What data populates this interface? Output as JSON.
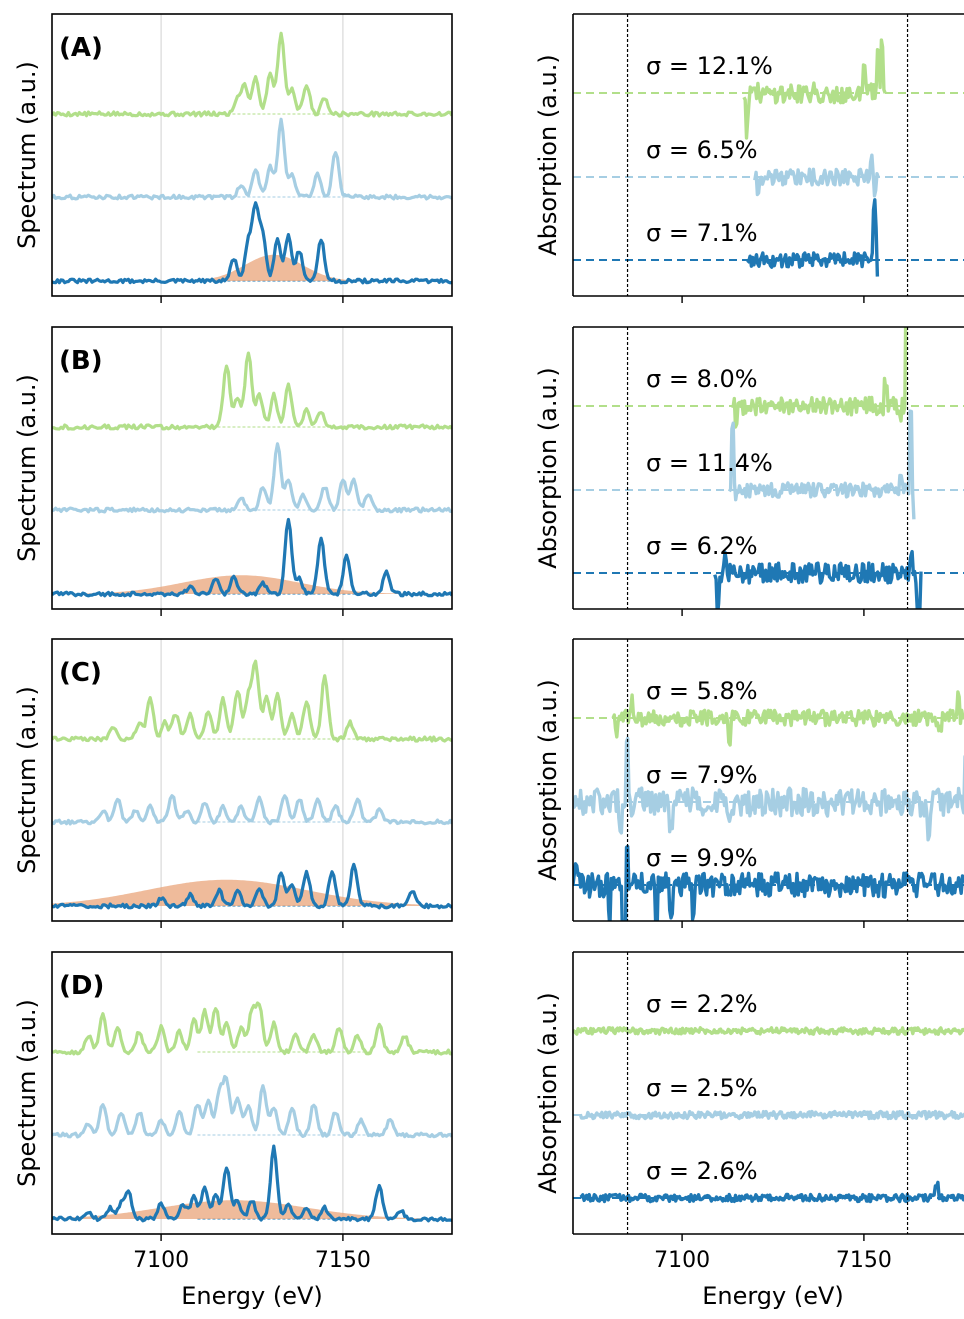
{
  "figure": {
    "spectrum_ylabel": "Spectrum (a.u.)",
    "absorption_ylabel": "Absorption (a.u.)",
    "xlabel": "Energy (eV)"
  },
  "colors": {
    "light_green": "#b2df8a",
    "light_blue": "#a6cee3",
    "dark_blue": "#1f78b4",
    "fill_orange": "#e9a47a",
    "grid": "#d0d0d0"
  },
  "chart_data": [
    {
      "type": "line",
      "label": "(A)",
      "side": "spectrum",
      "xlim": [
        7070,
        7180
      ],
      "xticks": [
        7100,
        7150
      ],
      "grid": true,
      "series": [
        {
          "color": "#b2df8a",
          "peaks": [
            [
              7121,
              0.18
            ],
            [
              7123,
              0.35
            ],
            [
              7126,
              0.45
            ],
            [
              7130,
              0.5
            ],
            [
              7133,
              1.0
            ],
            [
              7136,
              0.3
            ],
            [
              7140,
              0.35
            ],
            [
              7145,
              0.2
            ]
          ]
        },
        {
          "color": "#a6cee3",
          "peaks": [
            [
              7122,
              0.15
            ],
            [
              7126,
              0.35
            ],
            [
              7130,
              0.4
            ],
            [
              7133,
              1.0
            ],
            [
              7136,
              0.3
            ],
            [
              7143,
              0.3
            ],
            [
              7148,
              0.6
            ]
          ]
        },
        {
          "color": "#1f78b4",
          "peaks": [
            [
              7120,
              0.3
            ],
            [
              7124,
              0.5
            ],
            [
              7126,
              0.95
            ],
            [
              7128,
              0.6
            ],
            [
              7132,
              0.55
            ],
            [
              7135,
              0.6
            ],
            [
              7138,
              0.4
            ],
            [
              7144,
              0.55
            ]
          ],
          "envelope": {
            "center": 7131,
            "width": 8,
            "height": 0.35
          }
        }
      ]
    },
    {
      "type": "line",
      "label": "",
      "side": "absorption",
      "xlim": [
        7070,
        7180
      ],
      "xticks": [
        7100,
        7150
      ],
      "vlines": [
        7085,
        7162
      ],
      "series": [
        {
          "color": "#b2df8a",
          "sigma_label": "σ = 12.1%",
          "range": [
            7117,
            7156
          ],
          "noise": 0.25,
          "spikes": [
            [
              7118,
              -0.9
            ],
            [
              7150,
              0.7
            ],
            [
              7154,
              0.9
            ],
            [
              7155,
              1.2
            ]
          ]
        },
        {
          "color": "#a6cee3",
          "sigma_label": "σ = 6.5%",
          "range": [
            7120,
            7154
          ],
          "noise": 0.2,
          "spikes": [
            [
              7121,
              -0.6
            ],
            [
              7152,
              0.4
            ],
            [
              7153,
              -0.5
            ]
          ]
        },
        {
          "color": "#1f78b4",
          "sigma_label": "σ = 7.1%",
          "range": [
            7118,
            7154
          ],
          "noise": 0.18,
          "spikes": [
            [
              7153,
              1.4
            ],
            [
              7153.6,
              -0.5
            ]
          ]
        }
      ]
    },
    {
      "type": "line",
      "label": "(B)",
      "side": "spectrum",
      "xlim": [
        7070,
        7180
      ],
      "xticks": [
        7100,
        7150
      ],
      "grid": true,
      "series": [
        {
          "color": "#b2df8a",
          "peaks": [
            [
              7118,
              0.75
            ],
            [
              7121,
              0.35
            ],
            [
              7124,
              0.9
            ],
            [
              7127,
              0.4
            ],
            [
              7131,
              0.4
            ],
            [
              7135,
              0.5
            ],
            [
              7140,
              0.2
            ],
            [
              7144,
              0.2
            ]
          ]
        },
        {
          "color": "#a6cee3",
          "peaks": [
            [
              7122,
              0.15
            ],
            [
              7128,
              0.3
            ],
            [
              7132,
              0.85
            ],
            [
              7135,
              0.4
            ],
            [
              7139,
              0.2
            ],
            [
              7145,
              0.3
            ],
            [
              7150,
              0.4
            ],
            [
              7153,
              0.4
            ],
            [
              7157,
              0.2
            ]
          ]
        },
        {
          "color": "#1f78b4",
          "peaks": [
            [
              7108,
              0.1
            ],
            [
              7115,
              0.2
            ],
            [
              7120,
              0.25
            ],
            [
              7128,
              0.15
            ],
            [
              7135,
              1.0
            ],
            [
              7138,
              0.2
            ],
            [
              7144,
              0.75
            ],
            [
              7151,
              0.5
            ],
            [
              7162,
              0.3
            ]
          ],
          "envelope": {
            "center": 7122,
            "width": 16,
            "height": 0.25
          }
        }
      ]
    },
    {
      "type": "line",
      "label": "",
      "side": "absorption",
      "xlim": [
        7070,
        7180
      ],
      "xticks": [
        7100,
        7150
      ],
      "vlines": [
        7085,
        7162
      ],
      "series": [
        {
          "color": "#b2df8a",
          "sigma_label": "σ = 8.0%",
          "range": [
            7114,
            7162
          ],
          "noise": 0.22,
          "spikes": [
            [
              7115,
              -0.5
            ],
            [
              7156,
              0.6
            ],
            [
              7160,
              -0.4
            ],
            [
              7162,
              3.0
            ]
          ]
        },
        {
          "color": "#a6cee3",
          "sigma_label": "σ = 11.4%",
          "range": [
            7113,
            7164
          ],
          "noise": 0.18,
          "spikes": [
            [
              7114,
              1.6
            ],
            [
              7115,
              -0.2
            ],
            [
              7160,
              0.5
            ],
            [
              7163,
              1.8
            ],
            [
              7164,
              -0.9
            ]
          ]
        },
        {
          "color": "#1f78b4",
          "sigma_label": "σ = 6.2%",
          "range": [
            7109,
            7166
          ],
          "noise": 0.25,
          "spikes": [
            [
              7110,
              -0.9
            ],
            [
              7112,
              0.5
            ],
            [
              7163,
              0.4
            ],
            [
              7165,
              -1.0
            ]
          ]
        }
      ]
    },
    {
      "type": "line",
      "label": "(C)",
      "side": "spectrum",
      "xlim": [
        7070,
        7180
      ],
      "xticks": [
        7100,
        7150
      ],
      "grid": true,
      "series": [
        {
          "color": "#b2df8a",
          "peaks": [
            [
              7087,
              0.15
            ],
            [
              7094,
              0.2
            ],
            [
              7097,
              0.5
            ],
            [
              7101,
              0.2
            ],
            [
              7104,
              0.3
            ],
            [
              7108,
              0.3
            ],
            [
              7113,
              0.35
            ],
            [
              7117,
              0.5
            ],
            [
              7121,
              0.6
            ],
            [
              7124,
              0.5
            ],
            [
              7126,
              0.9
            ],
            [
              7129,
              0.5
            ],
            [
              7132,
              0.55
            ],
            [
              7136,
              0.3
            ],
            [
              7140,
              0.45
            ],
            [
              7145,
              0.75
            ],
            [
              7152,
              0.2
            ]
          ]
        },
        {
          "color": "#a6cee3",
          "peaks": [
            [
              7084,
              0.15
            ],
            [
              7088,
              0.3
            ],
            [
              7093,
              0.15
            ],
            [
              7097,
              0.2
            ],
            [
              7103,
              0.35
            ],
            [
              7107,
              0.15
            ],
            [
              7112,
              0.25
            ],
            [
              7117,
              0.2
            ],
            [
              7122,
              0.2
            ],
            [
              7127,
              0.3
            ],
            [
              7134,
              0.35
            ],
            [
              7138,
              0.3
            ],
            [
              7143,
              0.3
            ],
            [
              7148,
              0.2
            ],
            [
              7154,
              0.3
            ],
            [
              7160,
              0.15
            ]
          ]
        },
        {
          "color": "#1f78b4",
          "peaks": [
            [
              7100,
              0.1
            ],
            [
              7108,
              0.15
            ],
            [
              7116,
              0.2
            ],
            [
              7121,
              0.2
            ],
            [
              7127,
              0.25
            ],
            [
              7133,
              0.45
            ],
            [
              7136,
              0.3
            ],
            [
              7140,
              0.45
            ],
            [
              7147,
              0.45
            ],
            [
              7153,
              0.55
            ],
            [
              7169,
              0.2
            ]
          ],
          "envelope": {
            "center": 7118,
            "width": 22,
            "height": 0.35
          }
        }
      ]
    },
    {
      "type": "line",
      "label": "",
      "side": "absorption",
      "xlim": [
        7070,
        7180
      ],
      "xticks": [
        7100,
        7150
      ],
      "vlines": [
        7085,
        7162
      ],
      "series": [
        {
          "color": "#b2df8a",
          "sigma_label": "σ = 5.8%",
          "range": [
            7081,
            7180
          ],
          "noise": 0.2,
          "spikes": [
            [
              7082,
              -0.4
            ],
            [
              7086,
              0.4
            ],
            [
              7113,
              -0.5
            ],
            [
              7171,
              -0.4
            ],
            [
              7176,
              0.6
            ]
          ]
        },
        {
          "color": "#a6cee3",
          "sigma_label": "σ = 7.9%",
          "range": [
            7070,
            7180
          ],
          "noise": 0.35,
          "spikes": [
            [
              7083,
              -0.7
            ],
            [
              7085,
              1.5
            ],
            [
              7097,
              -0.6
            ],
            [
              7113,
              -0.4
            ],
            [
              7163,
              -0.5
            ],
            [
              7168,
              -0.6
            ],
            [
              7178,
              0.8
            ]
          ]
        },
        {
          "color": "#1f78b4",
          "sigma_label": "σ = 9.9%",
          "range": [
            7070,
            7180
          ],
          "noise": 0.3,
          "spikes": [
            [
              7071,
              0.5
            ],
            [
              7080,
              -0.8
            ],
            [
              7084,
              -1.5
            ],
            [
              7085,
              0.8
            ],
            [
              7093,
              -1.2
            ],
            [
              7097,
              -0.8
            ],
            [
              7103,
              -0.6
            ]
          ]
        }
      ]
    },
    {
      "type": "line",
      "label": "(D)",
      "side": "spectrum",
      "xlim": [
        7070,
        7180
      ],
      "xticks": [
        7100,
        7150
      ],
      "grid": true,
      "series": [
        {
          "color": "#b2df8a",
          "peaks": [
            [
              7080,
              0.2
            ],
            [
              7084,
              0.45
            ],
            [
              7088,
              0.3
            ],
            [
              7094,
              0.25
            ],
            [
              7100,
              0.3
            ],
            [
              7105,
              0.25
            ],
            [
              7109,
              0.4
            ],
            [
              7112,
              0.5
            ],
            [
              7115,
              0.55
            ],
            [
              7118,
              0.35
            ],
            [
              7122,
              0.3
            ],
            [
              7125,
              0.5
            ],
            [
              7127,
              0.55
            ],
            [
              7131,
              0.35
            ],
            [
              7137,
              0.2
            ],
            [
              7142,
              0.2
            ],
            [
              7149,
              0.3
            ],
            [
              7154,
              0.2
            ],
            [
              7160,
              0.35
            ],
            [
              7167,
              0.2
            ]
          ]
        },
        {
          "color": "#a6cee3",
          "peaks": [
            [
              7080,
              0.15
            ],
            [
              7084,
              0.4
            ],
            [
              7089,
              0.3
            ],
            [
              7094,
              0.3
            ],
            [
              7100,
              0.2
            ],
            [
              7105,
              0.3
            ],
            [
              7110,
              0.4
            ],
            [
              7113,
              0.45
            ],
            [
              7116,
              0.55
            ],
            [
              7118,
              0.7
            ],
            [
              7121,
              0.5
            ],
            [
              7124,
              0.4
            ],
            [
              7128,
              0.65
            ],
            [
              7131,
              0.35
            ],
            [
              7136,
              0.35
            ],
            [
              7142,
              0.4
            ],
            [
              7148,
              0.3
            ],
            [
              7155,
              0.2
            ],
            [
              7163,
              0.2
            ]
          ]
        },
        {
          "color": "#1f78b4",
          "peaks": [
            [
              7080,
              0.1
            ],
            [
              7086,
              0.15
            ],
            [
              7089,
              0.2
            ],
            [
              7091,
              0.35
            ],
            [
              7100,
              0.2
            ],
            [
              7106,
              0.2
            ],
            [
              7109,
              0.3
            ],
            [
              7112,
              0.4
            ],
            [
              7115,
              0.3
            ],
            [
              7118,
              0.7
            ],
            [
              7121,
              0.25
            ],
            [
              7125,
              0.25
            ],
            [
              7131,
              0.95
            ],
            [
              7135,
              0.2
            ],
            [
              7140,
              0.15
            ],
            [
              7145,
              0.15
            ],
            [
              7160,
              0.45
            ],
            [
              7166,
              0.1
            ]
          ],
          "envelope": {
            "center": 7120,
            "width": 20,
            "height": 0.25
          }
        }
      ]
    },
    {
      "type": "line",
      "label": "",
      "side": "absorption",
      "xlim": [
        7070,
        7180
      ],
      "xticks": [
        7100,
        7150
      ],
      "vlines": [
        7085,
        7162
      ],
      "series": [
        {
          "color": "#b2df8a",
          "sigma_label": "σ = 2.2%",
          "range": [
            7070,
            7180
          ],
          "noise": 0.08,
          "spikes": []
        },
        {
          "color": "#a6cee3",
          "sigma_label": "σ = 2.5%",
          "range": [
            7072,
            7180
          ],
          "noise": 0.09,
          "spikes": []
        },
        {
          "color": "#1f78b4",
          "sigma_label": "σ = 2.6%",
          "range": [
            7072,
            7180
          ],
          "noise": 0.09,
          "spikes": [
            [
              7170,
              0.3
            ],
            [
              7179,
              0.3
            ]
          ]
        }
      ]
    }
  ]
}
